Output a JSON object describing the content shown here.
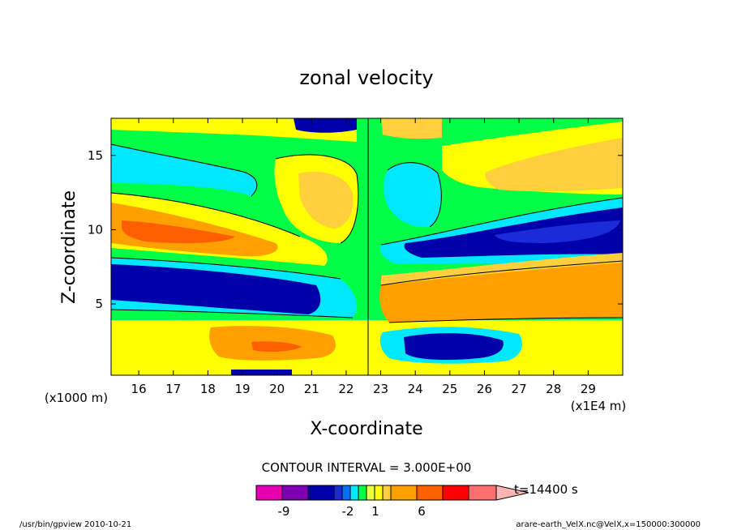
{
  "chart_data": {
    "type": "heatmap",
    "title": "zonal velocity",
    "xlabel": "X-coordinate",
    "ylabel": "Z-coordinate",
    "x_unit_note": "(x1E4 m)",
    "y_unit_note": "(x1000 m)",
    "xlim": [
      15.2,
      30.0
    ],
    "ylim": [
      0.2,
      17.5
    ],
    "x_ticks": [
      "16",
      "17",
      "18",
      "19",
      "20",
      "21",
      "22",
      "23",
      "24",
      "25",
      "26",
      "27",
      "28",
      "29"
    ],
    "y_ticks": [
      "5",
      "10",
      "15"
    ],
    "contour_interval_text": "CONTOUR INTERVAL = 3.000E+00",
    "time_label": "t=14400 s",
    "colorbar": {
      "colors": [
        "#e600b4",
        "#7f00b4",
        "#0000aa",
        "#1c2bd8",
        "#0070ff",
        "#00e8ff",
        "#00ff46",
        "#e8ff3c",
        "#ffff00",
        "#ffcf3c",
        "#ffa000",
        "#ff5f00",
        "#ff0000",
        "#ff6e6e",
        "#ffb4b4"
      ],
      "tick_labels": [
        "-9",
        "-2",
        "1",
        "6"
      ]
    },
    "footer_left": "/usr/bin/gpview   2010-10-21",
    "footer_right": "arare-earth_VelX.nc@VelX,x=150000:300000"
  }
}
